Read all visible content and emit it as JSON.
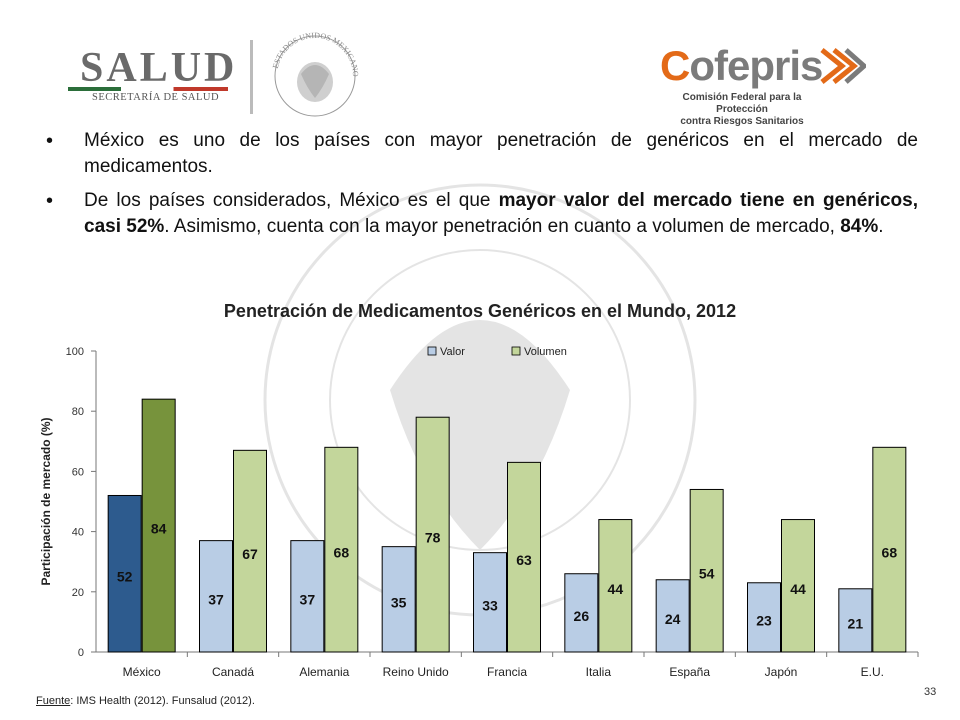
{
  "header": {
    "salud_word": "SALUD",
    "salud_sub": "SECRETARÍA DE SALUD",
    "cofepris_word_c": "C",
    "cofepris_word_rest": "ofepris",
    "cofepris_line1": "Comisión Federal para la Protección",
    "cofepris_line2": "contra Riesgos Sanitarios",
    "seal_text": "ESTADOS UNIDOS MEXICANOS"
  },
  "bullets": {
    "b1": "México es uno de los países con mayor penetración de genéricos en el mercado de medicamentos.",
    "b2_a": "De los países considerados, México es el que ",
    "b2_bold1": "mayor valor del mercado tiene en genéricos, casi 52%",
    "b2_b": ". Asimismo, cuenta con la mayor penetración en cuanto a volumen de mercado, ",
    "b2_bold2": "84%",
    "b2_c": "."
  },
  "chart_data": {
    "type": "bar",
    "title": "Penetración de Medicamentos Genéricos en el Mundo, 2012",
    "xlabel": "",
    "ylabel": "Participación de mercado (%)",
    "ylim": [
      0,
      100
    ],
    "yticks": [
      "0",
      "20",
      "40",
      "60",
      "80",
      "100"
    ],
    "categories": [
      "México",
      "Canadá",
      "Alemania",
      "Reino Unido",
      "Francia",
      "Italia",
      "España",
      "Japón",
      "E.U."
    ],
    "series": [
      {
        "name": "Valor",
        "values": [
          52,
          37,
          37,
          35,
          33,
          26,
          24,
          23,
          21
        ],
        "labels": [
          "52",
          "37",
          "37",
          "35",
          "33",
          "26",
          "24",
          "23",
          "21"
        ],
        "color": "#b9cde5",
        "highlight_color": "#2d5b8e"
      },
      {
        "name": "Volumen",
        "values": [
          84,
          67,
          68,
          78,
          63,
          44,
          54,
          44,
          68
        ],
        "labels": [
          "84",
          "67",
          "68",
          "78",
          "63",
          "44",
          "54",
          "44",
          "68"
        ],
        "color": "#c3d69b",
        "highlight_color": "#77933c"
      }
    ],
    "legend_position": "top-center",
    "grid": false
  },
  "footer": {
    "source_label": "Fuente",
    "source_text": ": IMS Health (2012). Funsalud (2012).",
    "page_number": "33"
  }
}
